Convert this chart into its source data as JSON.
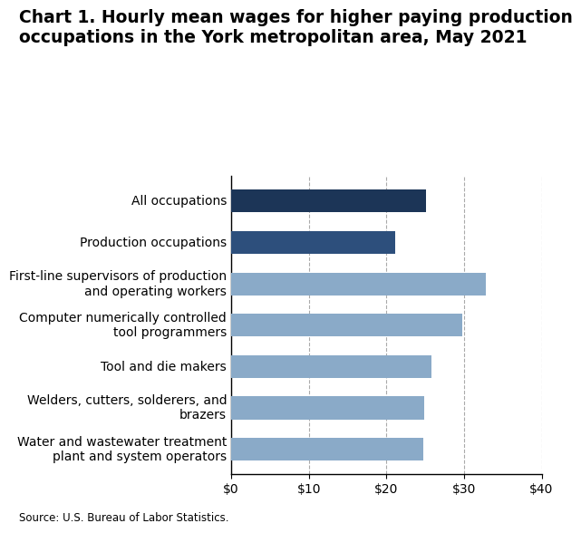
{
  "title_line1": "Chart 1. Hourly mean wages for higher paying production",
  "title_line2": "occupations in the York metropolitan area, May 2021",
  "categories": [
    "Water and wastewater treatment\nplant and system operators",
    "Welders, cutters, solderers, and\nbrazers",
    "Tool and die makers",
    "Computer numerically controlled\ntool programmers",
    "First-line supervisors of production\nand operating workers",
    "Production occupations",
    "All occupations"
  ],
  "values": [
    24.8,
    24.9,
    25.8,
    29.8,
    32.8,
    21.1,
    25.1
  ],
  "bar_colors": [
    "#8aaac8",
    "#8aaac8",
    "#8aaac8",
    "#8aaac8",
    "#8aaac8",
    "#2d4f7c",
    "#1c3557"
  ],
  "xlim": [
    0,
    40
  ],
  "xticks": [
    0,
    10,
    20,
    30,
    40
  ],
  "source": "Source: U.S. Bureau of Labor Statistics.",
  "grid_color": "#aaaaaa",
  "background_color": "#ffffff",
  "title_fontsize": 13.5,
  "tick_fontsize": 10,
  "label_fontsize": 10
}
